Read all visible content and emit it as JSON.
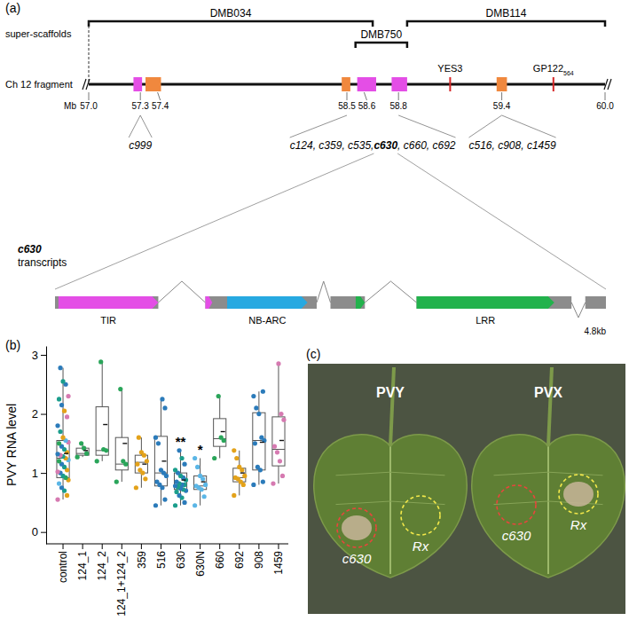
{
  "panel_a": {
    "label": "(a)",
    "scaffold_axis_label": "super-scaffolds",
    "chromosome_label": "Ch 12 fragment",
    "unit": "Mb",
    "range": [
      57.0,
      60.0
    ],
    "scaffolds": [
      {
        "name": "DMB034",
        "start": 57.0,
        "end": 58.65
      },
      {
        "name": "DMB750",
        "start": 58.55,
        "end": 58.85
      },
      {
        "name": "DMB114",
        "start": 58.85,
        "end": 60.0
      }
    ],
    "positions": [
      {
        "value": 57.0,
        "label": "57.0"
      },
      {
        "value": 57.3,
        "label": "57.3"
      },
      {
        "value": 57.4,
        "label": "57.4"
      },
      {
        "value": 58.5,
        "label": "58.5"
      },
      {
        "value": 58.6,
        "label": "58.6"
      },
      {
        "value": 58.8,
        "label": "58.8"
      },
      {
        "value": 59.4,
        "label": "59.4"
      },
      {
        "value": 60.0,
        "label": "60.0"
      }
    ],
    "genes": [
      {
        "start": 57.26,
        "end": 57.31,
        "color": "#e44ee6"
      },
      {
        "start": 57.33,
        "end": 57.42,
        "color": "#f0883e"
      },
      {
        "start": 58.47,
        "end": 58.52,
        "color": "#f0883e"
      },
      {
        "start": 58.56,
        "end": 58.67,
        "color": "#e44ee6"
      },
      {
        "start": 58.76,
        "end": 58.85,
        "color": "#e44ee6"
      },
      {
        "start": 59.37,
        "end": 59.43,
        "color": "#f0883e"
      }
    ],
    "markers": [
      {
        "name": "YES3",
        "position": 59.1
      },
      {
        "name": "GP122",
        "subscript": "564",
        "position": 59.7
      }
    ],
    "clusters": [
      {
        "label": "c999",
        "from": [
          57.3
        ]
      },
      {
        "label": "c124, c359, c535, c630, c660, c692",
        "highlight": "c630",
        "from": [
          58.5,
          58.8
        ]
      },
      {
        "label": "c516, c908, c1459",
        "from": [
          59.4
        ]
      }
    ],
    "transcript": {
      "name": "c630",
      "caption": "transcripts",
      "length": 4.8,
      "length_label": "4.8kb",
      "exons": [
        [
          0,
          0.9
        ],
        [
          1.31,
          2.28
        ],
        [
          2.4,
          2.7
        ],
        [
          3.15,
          4.5
        ],
        [
          4.62,
          4.8
        ]
      ],
      "introns": [
        {
          "start": 0.9,
          "end": 1.31,
          "direction": "up"
        },
        {
          "start": 2.28,
          "end": 2.4,
          "direction": "up"
        },
        {
          "start": 2.7,
          "end": 3.15,
          "direction": "up"
        },
        {
          "start": 4.5,
          "end": 4.62,
          "direction": "down"
        }
      ],
      "domains": [
        {
          "start": 0.03,
          "end": 0.9,
          "color": "#e44ee6",
          "label": "TIR"
        },
        {
          "start": 1.31,
          "end": 1.37,
          "color": "#e44ee6"
        },
        {
          "start": 1.5,
          "end": 2.2,
          "color": "#27a9e1",
          "label": "NB-ARC"
        },
        {
          "start": 2.62,
          "end": 2.7,
          "color": "#22b24c"
        },
        {
          "start": 3.15,
          "end": 4.35,
          "color": "#22b24c",
          "label": "LRR"
        }
      ]
    }
  },
  "chart_data": {
    "type": "box",
    "panel_label": "(b)",
    "y_label": "PVY RNA level",
    "categories": [
      "control",
      "124_1",
      "124_2",
      "124_1+124_2",
      "359",
      "516",
      "630",
      "630N",
      "660",
      "692",
      "908",
      "1459"
    ],
    "ylim": [
      -0.2,
      3.15
    ],
    "yticks": [
      0,
      1,
      2,
      3
    ],
    "boxes": [
      {
        "min": 0.55,
        "q1": 0.92,
        "median": 1.25,
        "q3": 1.55,
        "max": 2.78,
        "mean": 1.33,
        "points": [
          0.55,
          0.62,
          0.7,
          0.75,
          0.82,
          0.88,
          0.92,
          0.95,
          1.0,
          1.02,
          1.05,
          1.1,
          1.15,
          1.2,
          1.22,
          1.25,
          1.28,
          1.3,
          1.32,
          1.35,
          1.4,
          1.45,
          1.5,
          1.52,
          1.55,
          1.6,
          1.7,
          1.8,
          1.95,
          2.05,
          2.15,
          2.25,
          2.3,
          2.5,
          2.55,
          2.78
        ],
        "colors": [
          "#d67ab1",
          "#e3a21a",
          "#1b9e8c",
          "#2b7bba",
          "#5bb6e6",
          "#e3a21a",
          "#2aa55a",
          "#1b9e8c",
          "#2b7bba",
          "#d67ab1",
          "#e3a21a",
          "#1b9e8c",
          "#2b7bba",
          "#2aa55a",
          "#5bb6e6",
          "#e3a21a",
          "#1b9e8c",
          "#d67ab1",
          "#2b7bba",
          "#e3a21a",
          "#1b9e8c",
          "#2b7bba",
          "#2aa55a",
          "#d67ab1",
          "#5bb6e6",
          "#e3a21a",
          "#1b9e8c",
          "#2b7bba",
          "#d67ab1",
          "#e3a21a",
          "#2b7bba",
          "#1b9e8c",
          "#d67ab1",
          "#2b7bba",
          "#1b9e8c",
          "#2b7bba"
        ]
      },
      {
        "min": 1.27,
        "q1": 1.3,
        "median": 1.33,
        "q3": 1.42,
        "max": 1.5,
        "mean": 1.38,
        "points": [
          1.27,
          1.33,
          1.42,
          1.5
        ],
        "colors": [
          "#2aa55a",
          "#2aa55a",
          "#2aa55a",
          "#2aa55a"
        ]
      },
      {
        "min": 1.2,
        "q1": 1.3,
        "median": 1.38,
        "q3": 2.12,
        "max": 2.88,
        "mean": 1.82,
        "points": [
          1.2,
          1.38,
          1.4,
          2.88
        ],
        "colors": [
          "#2aa55a",
          "#2aa55a",
          "#2aa55a",
          "#2aa55a"
        ]
      },
      {
        "min": 0.85,
        "q1": 1.05,
        "median": 1.15,
        "q3": 1.6,
        "max": 2.42,
        "mean": 1.5,
        "points": [
          0.85,
          1.15,
          1.2,
          2.42
        ],
        "colors": [
          "#2aa55a",
          "#2aa55a",
          "#2aa55a",
          "#2aa55a"
        ]
      },
      {
        "min": 0.75,
        "q1": 1.0,
        "median": 1.18,
        "q3": 1.3,
        "max": 1.6,
        "mean": 1.15,
        "points": [
          0.75,
          0.9,
          1.0,
          1.05,
          1.15,
          1.2,
          1.3,
          1.35,
          1.6
        ],
        "colors": [
          "#e3a21a",
          "#e3a21a",
          "#e3a21a",
          "#e3a21a",
          "#e3a21a",
          "#e3a21a",
          "#e3a21a",
          "#e3a21a",
          "#e3a21a"
        ]
      },
      {
        "min": 0.45,
        "q1": 0.78,
        "median": 1.0,
        "q3": 1.62,
        "max": 2.25,
        "mean": 1.2,
        "points": [
          0.45,
          0.55,
          0.75,
          0.8,
          0.85,
          0.95,
          1.0,
          1.05,
          1.5,
          1.6,
          2.1,
          2.25
        ],
        "colors": [
          "#2b7bba",
          "#2b7bba",
          "#2b7bba",
          "#2b7bba",
          "#2b7bba",
          "#2b7bba",
          "#2b7bba",
          "#2b7bba",
          "#2b7bba",
          "#2b7bba",
          "#2b7bba",
          "#2b7bba"
        ]
      },
      {
        "min": 0.45,
        "q1": 0.72,
        "median": 0.8,
        "q3": 1.0,
        "max": 1.38,
        "mean": 0.88,
        "points": [
          0.45,
          0.5,
          0.58,
          0.62,
          0.68,
          0.7,
          0.72,
          0.74,
          0.76,
          0.78,
          0.8,
          0.8,
          0.82,
          0.85,
          0.88,
          0.92,
          0.95,
          1.0,
          1.05,
          1.15,
          1.25,
          1.38
        ],
        "colors": [
          "#1b9e8c",
          "#2b7bba",
          "#1b9e8c",
          "#2b7bba",
          "#1b9e8c",
          "#2b7bba",
          "#1b9e8c",
          "#2b7bba",
          "#1b9e8c",
          "#2b7bba",
          "#1b9e8c",
          "#2b7bba",
          "#1b9e8c",
          "#2b7bba",
          "#1b9e8c",
          "#2b7bba",
          "#1b9e8c",
          "#2b7bba",
          "#1b9e8c",
          "#2b7bba",
          "#1b9e8c",
          "#2b7bba"
        ]
      },
      {
        "min": 0.45,
        "q1": 0.72,
        "median": 0.78,
        "q3": 0.95,
        "max": 1.25,
        "mean": 0.85,
        "points": [
          0.45,
          0.6,
          0.72,
          0.75,
          0.78,
          0.8,
          0.9,
          0.95,
          1.1,
          1.25
        ],
        "colors": [
          "#5bb6e6",
          "#5bb6e6",
          "#5bb6e6",
          "#5bb6e6",
          "#5bb6e6",
          "#5bb6e6",
          "#5bb6e6",
          "#5bb6e6",
          "#5bb6e6",
          "#5bb6e6"
        ]
      },
      {
        "min": 1.25,
        "q1": 1.45,
        "median": 1.58,
        "q3": 1.92,
        "max": 2.3,
        "mean": 1.7,
        "points": [
          1.25,
          1.55,
          1.6,
          2.3
        ],
        "colors": [
          "#2aa55a",
          "#2aa55a",
          "#2aa55a",
          "#2aa55a"
        ]
      },
      {
        "min": 0.62,
        "q1": 0.85,
        "median": 0.92,
        "q3": 1.08,
        "max": 1.38,
        "mean": 1.0,
        "points": [
          0.62,
          0.8,
          0.85,
          0.9,
          0.92,
          0.95,
          1.05,
          1.1,
          1.25,
          1.38
        ],
        "colors": [
          "#e3a21a",
          "#e3a21a",
          "#e3a21a",
          "#e3a21a",
          "#e3a21a",
          "#e3a21a",
          "#e3a21a",
          "#e3a21a",
          "#e3a21a",
          "#e3a21a"
        ]
      },
      {
        "min": 0.8,
        "q1": 1.05,
        "median": 1.55,
        "q3": 2.02,
        "max": 2.38,
        "mean": 1.52,
        "points": [
          0.8,
          0.85,
          1.05,
          1.1,
          1.5,
          1.55,
          1.6,
          2.0,
          2.1,
          2.3,
          2.38
        ],
        "colors": [
          "#2b7bba",
          "#2b7bba",
          "#2b7bba",
          "#2b7bba",
          "#2b7bba",
          "#2b7bba",
          "#2b7bba",
          "#2b7bba",
          "#2b7bba",
          "#2b7bba",
          "#2b7bba"
        ]
      },
      {
        "min": 0.82,
        "q1": 1.12,
        "median": 1.4,
        "q3": 1.95,
        "max": 2.85,
        "mean": 1.55,
        "points": [
          0.82,
          0.95,
          1.2,
          1.35,
          1.45,
          1.9,
          2.0,
          2.85
        ],
        "colors": [
          "#d67ab1",
          "#d67ab1",
          "#d67ab1",
          "#d67ab1",
          "#d67ab1",
          "#d67ab1",
          "#d67ab1",
          "#d67ab1"
        ]
      }
    ],
    "annotations": [
      {
        "category": 6,
        "y": 1.45,
        "text": "**"
      },
      {
        "category": 7,
        "y": 1.32,
        "text": "*"
      }
    ]
  },
  "panel_c": {
    "label": "(c)",
    "leaves": [
      {
        "virus": "PVY",
        "spots": [
          {
            "label": "c630",
            "color": "#e8453c",
            "lesion": true
          },
          {
            "label": "Rx",
            "color": "#f2e84a",
            "lesion": false
          }
        ]
      },
      {
        "virus": "PVX",
        "spots": [
          {
            "label": "c630",
            "color": "#e8453c",
            "lesion": false
          },
          {
            "label": "Rx",
            "color": "#f2e84a",
            "lesion": true
          }
        ]
      }
    ]
  }
}
